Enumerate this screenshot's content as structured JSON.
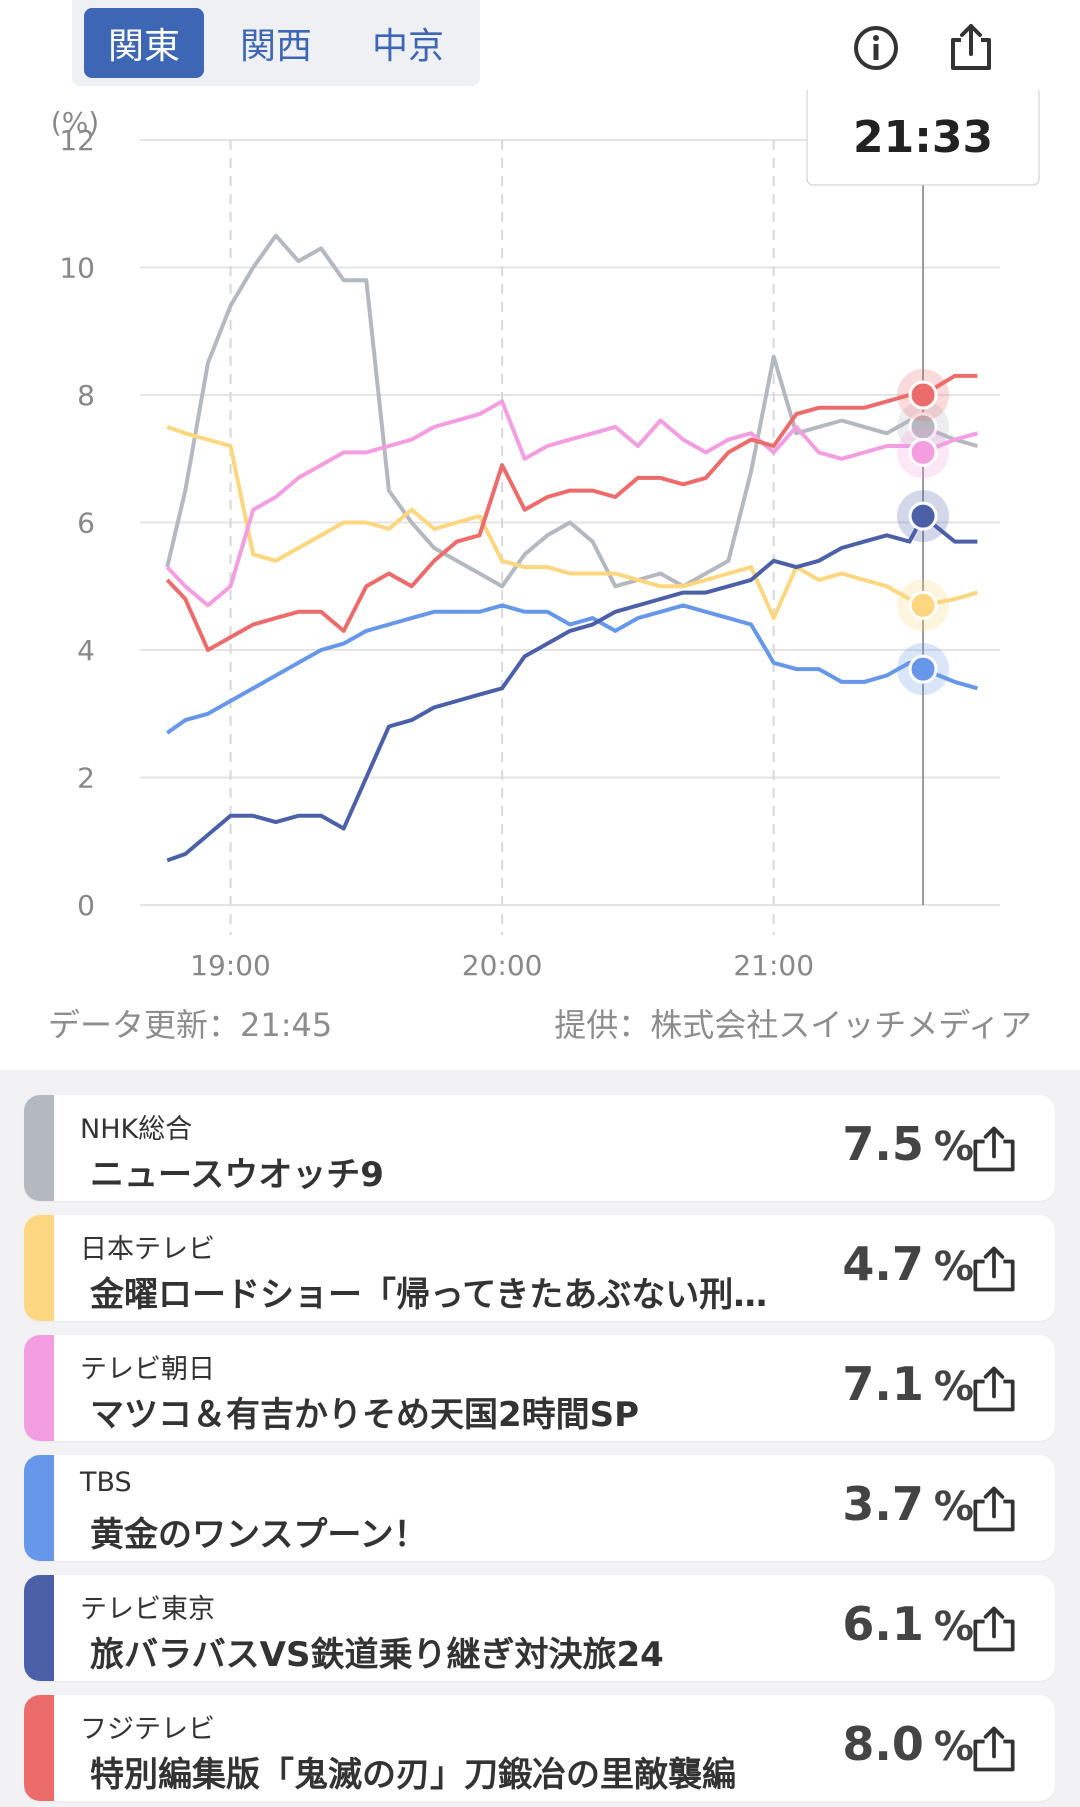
{
  "tabs": [
    {
      "label": "関東",
      "active": true
    },
    {
      "label": "関西",
      "active": false
    },
    {
      "label": "中京",
      "active": false
    }
  ],
  "header": {
    "info_icon": "info-icon",
    "share_icon": "share-icon"
  },
  "chart_data": {
    "type": "line",
    "ylabel": "(%)",
    "ylim": [
      0,
      12
    ],
    "yticks": [
      "0",
      "2",
      "4",
      "6",
      "8",
      "10",
      "12"
    ],
    "xticks": [
      "19:00",
      "20:00",
      "21:00"
    ],
    "cursor_time": "21:33",
    "x": [
      "18:46",
      "18:50",
      "18:55",
      "19:00",
      "19:05",
      "19:10",
      "19:15",
      "19:20",
      "19:25",
      "19:30",
      "19:35",
      "19:40",
      "19:45",
      "19:50",
      "19:55",
      "20:00",
      "20:05",
      "20:10",
      "20:15",
      "20:20",
      "20:25",
      "20:30",
      "20:35",
      "20:40",
      "20:45",
      "20:50",
      "20:55",
      "21:00",
      "21:05",
      "21:10",
      "21:15",
      "21:20",
      "21:25",
      "21:30",
      "21:33",
      "21:40",
      "21:45"
    ],
    "series": [
      {
        "name": "NHK総合",
        "color": "#b4b8bf",
        "values": [
          5.3,
          6.5,
          8.5,
          9.4,
          10.0,
          10.5,
          10.1,
          10.3,
          9.8,
          9.8,
          6.5,
          6.0,
          5.6,
          5.4,
          5.2,
          5.0,
          5.5,
          5.8,
          6.0,
          5.7,
          5.0,
          5.1,
          5.2,
          5.0,
          5.2,
          5.4,
          6.8,
          8.6,
          7.4,
          7.5,
          7.6,
          7.5,
          7.4,
          7.6,
          7.5,
          7.3,
          7.2
        ]
      },
      {
        "name": "日本テレビ",
        "color": "#fdd77f",
        "values": [
          7.5,
          7.4,
          7.3,
          7.2,
          5.5,
          5.4,
          5.6,
          5.8,
          6.0,
          6.0,
          5.9,
          6.2,
          5.9,
          6.0,
          6.1,
          5.4,
          5.3,
          5.3,
          5.2,
          5.2,
          5.2,
          5.1,
          5.0,
          5.0,
          5.1,
          5.2,
          5.3,
          4.5,
          5.3,
          5.1,
          5.2,
          5.1,
          5.0,
          4.8,
          4.7,
          4.8,
          4.9
        ]
      },
      {
        "name": "テレビ朝日",
        "color": "#f29ee0",
        "values": [
          5.3,
          5.0,
          4.7,
          5.0,
          6.2,
          6.4,
          6.7,
          6.9,
          7.1,
          7.1,
          7.2,
          7.3,
          7.5,
          7.6,
          7.7,
          7.9,
          7.0,
          7.2,
          7.3,
          7.4,
          7.5,
          7.2,
          7.6,
          7.3,
          7.1,
          7.3,
          7.4,
          7.1,
          7.5,
          7.1,
          7.0,
          7.1,
          7.2,
          7.2,
          7.1,
          7.3,
          7.4
        ]
      },
      {
        "name": "TBS",
        "color": "#6797e8",
        "values": [
          2.7,
          2.9,
          3.0,
          3.2,
          3.4,
          3.6,
          3.8,
          4.0,
          4.1,
          4.3,
          4.4,
          4.5,
          4.6,
          4.6,
          4.6,
          4.7,
          4.6,
          4.6,
          4.4,
          4.5,
          4.3,
          4.5,
          4.6,
          4.7,
          4.6,
          4.5,
          4.4,
          3.8,
          3.7,
          3.7,
          3.5,
          3.5,
          3.6,
          3.8,
          3.7,
          3.5,
          3.4
        ]
      },
      {
        "name": "テレビ東京",
        "color": "#4c60a8",
        "values": [
          0.7,
          0.8,
          1.1,
          1.4,
          1.4,
          1.3,
          1.4,
          1.4,
          1.2,
          2.0,
          2.8,
          2.9,
          3.1,
          3.2,
          3.3,
          3.4,
          3.9,
          4.1,
          4.3,
          4.4,
          4.6,
          4.7,
          4.8,
          4.9,
          4.9,
          5.0,
          5.1,
          5.4,
          5.3,
          5.4,
          5.6,
          5.7,
          5.8,
          5.7,
          6.1,
          5.7,
          5.7
        ]
      },
      {
        "name": "フジテレビ",
        "color": "#ec6b6b",
        "values": [
          5.1,
          4.8,
          4.0,
          4.2,
          4.4,
          4.5,
          4.6,
          4.6,
          4.3,
          5.0,
          5.2,
          5.0,
          5.4,
          5.7,
          5.8,
          6.9,
          6.2,
          6.4,
          6.5,
          6.5,
          6.4,
          6.7,
          6.7,
          6.6,
          6.7,
          7.1,
          7.3,
          7.2,
          7.7,
          7.8,
          7.8,
          7.8,
          7.9,
          8.0,
          8.0,
          8.3,
          8.3
        ]
      }
    ]
  },
  "footer": {
    "updated": "データ更新：21:45",
    "source": "提供：株式会社スイッチメディア"
  },
  "programs": [
    {
      "channel": "NHK総合",
      "title": "ニュースウオッチ9",
      "rating": "7.5",
      "unit": "%",
      "color": "#b4b8bf"
    },
    {
      "channel": "日本テレビ",
      "title": "金曜ロードショー「帰ってきたあぶない刑事」",
      "rating": "4.7",
      "unit": "%",
      "color": "#fdd77f"
    },
    {
      "channel": "テレビ朝日",
      "title": "マツコ＆有吉かりそめ天国2時間SP",
      "rating": "7.1",
      "unit": "%",
      "color": "#f29ee0"
    },
    {
      "channel": "TBS",
      "title": "黄金のワンスプーン！",
      "rating": "3.7",
      "unit": "%",
      "color": "#6797e8"
    },
    {
      "channel": "テレビ東京",
      "title": "旅バラバスVS鉄道乗り継ぎ対決旅24",
      "rating": "6.1",
      "unit": "%",
      "color": "#4c60a8"
    },
    {
      "channel": "フジテレビ",
      "title": "特別編集版「鬼滅の刃」刀鍛冶の里敵襲編",
      "rating": "8.0",
      "unit": "%",
      "color": "#ec6b6b"
    }
  ]
}
